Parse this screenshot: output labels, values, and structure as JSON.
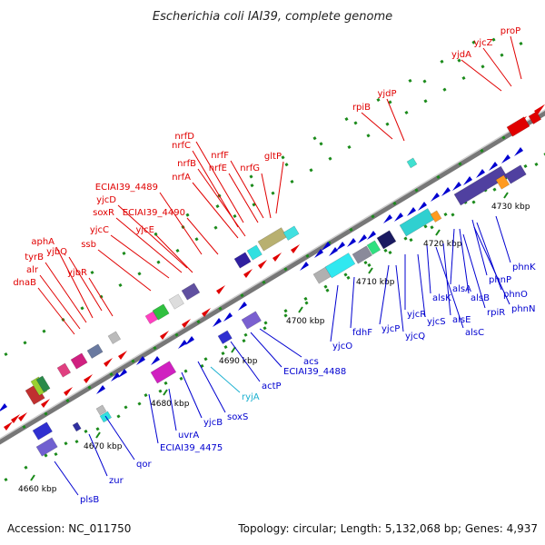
{
  "title": "Escherichia coli IAI39, complete genome",
  "footer": {
    "accession": "Accession: NC_011750",
    "summary": "Topology: circular; Length: 5,132,068 bp; Genes: 4,937"
  },
  "colors": {
    "forward": "#e00000",
    "reverse": "#0000d0",
    "rna": "#1ab0d0",
    "backbone": "#777777",
    "tick": "#1a8a1a"
  },
  "ticks": [
    {
      "label": "4660 kbp"
    },
    {
      "label": "4670 kbp"
    },
    {
      "label": "4680 kbp"
    },
    {
      "label": "4690 kbp"
    },
    {
      "label": "4700 kbp"
    },
    {
      "label": "4710 kbp"
    },
    {
      "label": "4720 kbp"
    },
    {
      "label": "4730 kbp"
    }
  ],
  "genes": [
    {
      "name": "proP",
      "strand": "forward"
    },
    {
      "name": "yjcZ",
      "strand": "forward"
    },
    {
      "name": "yjdA",
      "strand": "forward"
    },
    {
      "name": "yjdP",
      "strand": "forward"
    },
    {
      "name": "rpiB",
      "strand": "forward"
    },
    {
      "name": "nrfD",
      "strand": "forward"
    },
    {
      "name": "nrfC",
      "strand": "forward"
    },
    {
      "name": "nrfF",
      "strand": "forward"
    },
    {
      "name": "nrfE",
      "strand": "forward"
    },
    {
      "name": "nrfG",
      "strand": "forward"
    },
    {
      "name": "nrfB",
      "strand": "forward"
    },
    {
      "name": "nrfA",
      "strand": "forward"
    },
    {
      "name": "gltP",
      "strand": "forward"
    },
    {
      "name": "ECIAI39_4489",
      "strand": "forward"
    },
    {
      "name": "yjcD",
      "strand": "forward"
    },
    {
      "name": "soxR",
      "strand": "forward"
    },
    {
      "name": "ECIAI39_4490",
      "strand": "forward"
    },
    {
      "name": "yjcC",
      "strand": "forward"
    },
    {
      "name": "yjcE",
      "strand": "forward"
    },
    {
      "name": "ssb",
      "strand": "forward"
    },
    {
      "name": "aphA",
      "strand": "forward"
    },
    {
      "name": "tyrB",
      "strand": "forward"
    },
    {
      "name": "yjbQ",
      "strand": "forward"
    },
    {
      "name": "alr",
      "strand": "forward"
    },
    {
      "name": "yjbR",
      "strand": "forward"
    },
    {
      "name": "dnaB",
      "strand": "forward"
    },
    {
      "name": "phnK",
      "strand": "reverse"
    },
    {
      "name": "phnP",
      "strand": "reverse"
    },
    {
      "name": "phnO",
      "strand": "reverse"
    },
    {
      "name": "phnN",
      "strand": "reverse"
    },
    {
      "name": "alsA",
      "strand": "reverse"
    },
    {
      "name": "alsB",
      "strand": "reverse"
    },
    {
      "name": "rpiR",
      "strand": "reverse"
    },
    {
      "name": "alsK",
      "strand": "reverse"
    },
    {
      "name": "alsE",
      "strand": "reverse"
    },
    {
      "name": "alsC",
      "strand": "reverse"
    },
    {
      "name": "yjcR",
      "strand": "reverse"
    },
    {
      "name": "yjcS",
      "strand": "reverse"
    },
    {
      "name": "yjcP",
      "strand": "reverse"
    },
    {
      "name": "yjcQ",
      "strand": "reverse"
    },
    {
      "name": "fdhF",
      "strand": "reverse"
    },
    {
      "name": "yjcO",
      "strand": "reverse"
    },
    {
      "name": "acs",
      "strand": "reverse"
    },
    {
      "name": "ECIAI39_4488",
      "strand": "reverse"
    },
    {
      "name": "actP",
      "strand": "reverse"
    },
    {
      "name": "ryjA",
      "strand": "rna"
    },
    {
      "name": "soxS",
      "strand": "reverse"
    },
    {
      "name": "yjcB",
      "strand": "reverse"
    },
    {
      "name": "uvrA",
      "strand": "reverse"
    },
    {
      "name": "ECIAI39_4475",
      "strand": "reverse"
    },
    {
      "name": "qor",
      "strand": "reverse"
    },
    {
      "name": "zur",
      "strand": "reverse"
    },
    {
      "name": "plsB",
      "strand": "reverse"
    }
  ]
}
